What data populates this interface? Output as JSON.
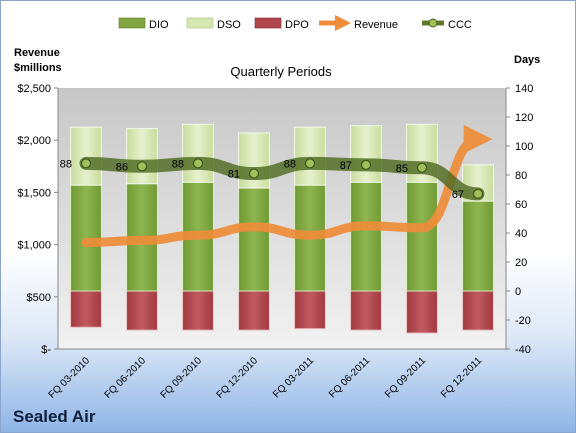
{
  "company_name": "Sealed Air",
  "chart_data": {
    "type": "bar",
    "title": "Quarterly Periods",
    "left_axis_label": [
      "Revenue",
      "$millions"
    ],
    "right_axis_label": "Days",
    "left_ticks": [
      "$-",
      "$500",
      "$1,000",
      "$1,500",
      "$2,000",
      "$2,500"
    ],
    "right_ticks": [
      "-40",
      "-20",
      "0",
      "20",
      "40",
      "60",
      "80",
      "100",
      "120",
      "140"
    ],
    "left_ylim": [
      0,
      2500
    ],
    "right_ylim": [
      -40,
      140
    ],
    "categories": [
      "FQ 03-2010",
      "FQ 06-2010",
      "FQ 09-2010",
      "FQ 12-2010",
      "FQ 03-2011",
      "FQ 06-2011",
      "FQ 09-2011",
      "FQ 12-2011"
    ],
    "series": [
      {
        "name": "DIO",
        "axis": "right",
        "values": [
          73,
          74,
          75,
          71,
          73,
          75,
          75,
          62
        ],
        "color": "#7fa641"
      },
      {
        "name": "DSO",
        "axis": "right",
        "values": [
          40,
          38,
          40,
          38,
          40,
          39,
          40,
          25
        ],
        "color": "#d6e6b0"
      },
      {
        "name": "DPO",
        "axis": "right",
        "values": [
          -25,
          -27,
          -27,
          -27,
          -26,
          -27,
          -29,
          -27
        ],
        "color": "#b0454b"
      },
      {
        "name": "Revenue",
        "axis": "left",
        "values": [
          1020,
          1040,
          1090,
          1170,
          1090,
          1180,
          1160,
          2010
        ],
        "color": "#ef8d3a"
      },
      {
        "name": "CCC",
        "axis": "right",
        "values": [
          88,
          86,
          88,
          81,
          88,
          87,
          85,
          67
        ],
        "color": "#5f7a2a"
      }
    ],
    "ccc_labels": [
      "88",
      "86",
      "88",
      "81",
      "88",
      "87",
      "85",
      "67"
    ],
    "legend_position": "top",
    "grid": false
  }
}
